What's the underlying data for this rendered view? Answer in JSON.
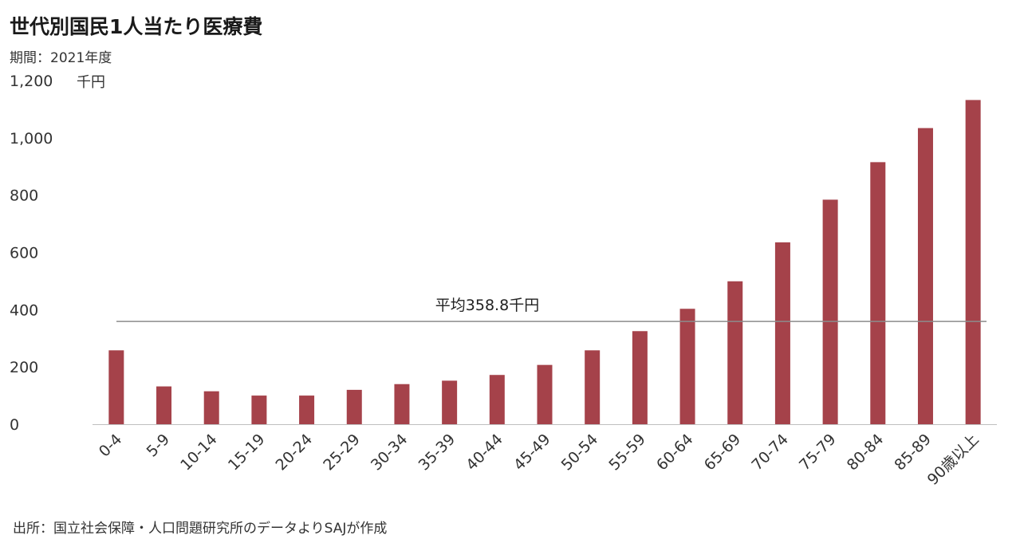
{
  "header": {
    "title": "世代別国民1人当たり医療費",
    "subtitle": "期間：2021年度"
  },
  "footer": {
    "source": "出所：国立社会保障・人口問題研究所のデータよりSAJが作成"
  },
  "chart_data": {
    "type": "bar",
    "title": "世代別国民1人当たり医療費",
    "ylabel": "千円",
    "ylim": [
      0,
      1200
    ],
    "yticks": [
      0,
      200,
      400,
      600,
      800,
      1000,
      1200
    ],
    "ytick_labels": [
      "0",
      "200",
      "400",
      "600",
      "800",
      "1,000",
      "1,200"
    ],
    "categories": [
      "0-4",
      "5-9",
      "10-14",
      "15-19",
      "20-24",
      "25-29",
      "30-34",
      "35-39",
      "40-44",
      "45-49",
      "50-54",
      "55-59",
      "60-64",
      "65-69",
      "70-74",
      "75-79",
      "80-84",
      "85-89",
      "90歳以上"
    ],
    "values": [
      258,
      132,
      115,
      100,
      100,
      120,
      140,
      152,
      172,
      207,
      258,
      325,
      403,
      499,
      635,
      784,
      915,
      1034,
      1132
    ],
    "bar_color": "#a5424a",
    "average": {
      "value": 358.8,
      "label": "平均358.8千円",
      "color": "#8c8c8c"
    },
    "grid": false,
    "legend": "none"
  }
}
